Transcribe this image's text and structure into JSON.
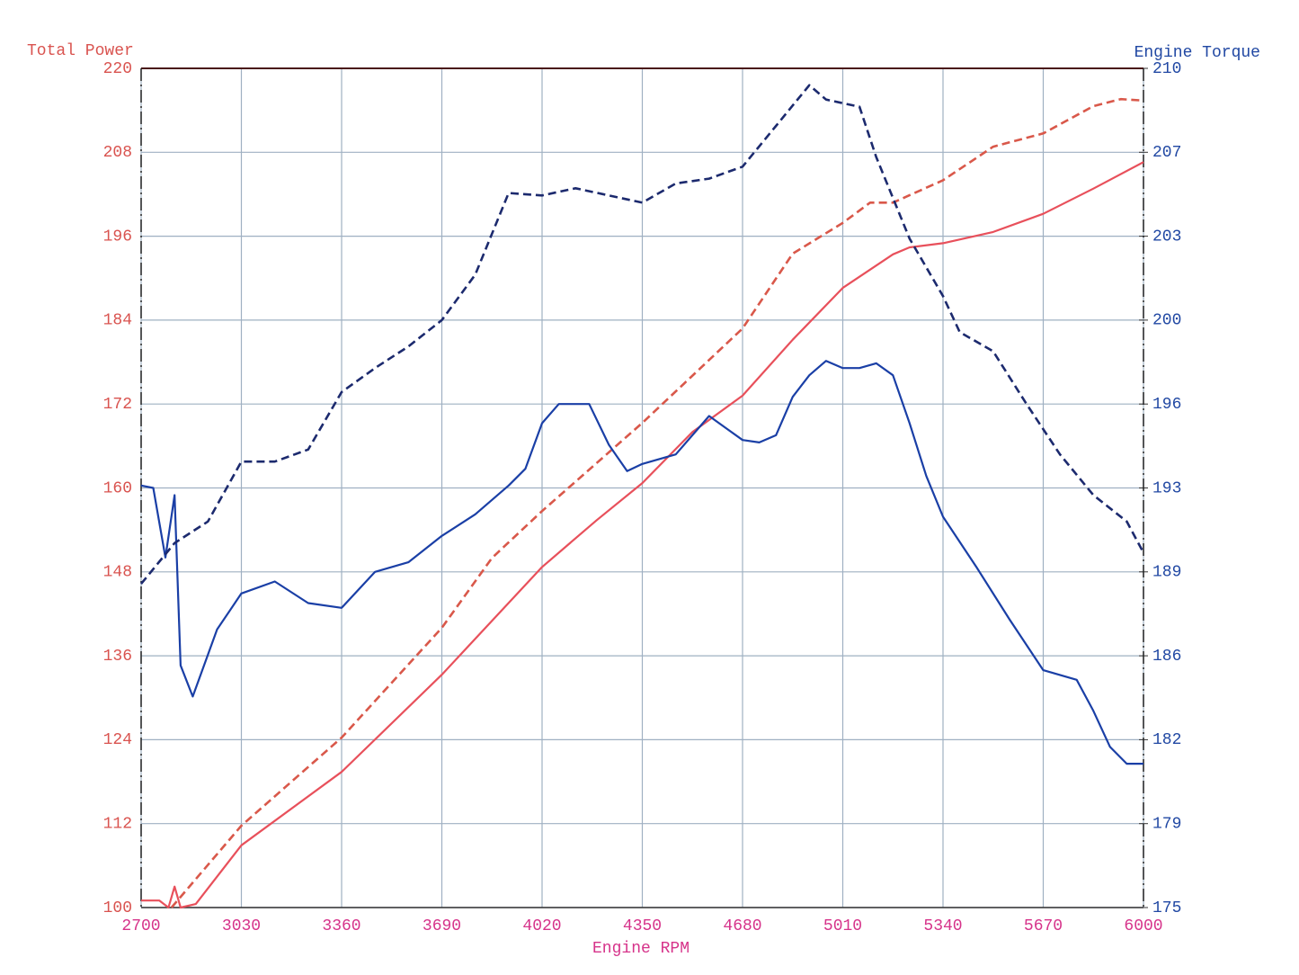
{
  "chart_data": {
    "type": "line",
    "y_label": "Total Power",
    "y2_label": "Engine Torque",
    "x_label": "Engine RPM",
    "xlim": [
      2700,
      6000
    ],
    "xticks": [
      2700,
      3030,
      3360,
      3690,
      4020,
      4350,
      4680,
      5010,
      5340,
      5670,
      6000
    ],
    "ylim": [
      100,
      220
    ],
    "yticks": [
      100,
      112,
      124,
      136,
      148,
      160,
      172,
      184,
      196,
      208,
      220
    ],
    "y2lim": [
      175,
      210
    ],
    "y2ticks": [
      175,
      {
        "value": 178.5,
        "label": "179"
      },
      182,
      {
        "value": 185.5,
        "label": "186"
      },
      189,
      {
        "value": 192.5,
        "label": "193"
      },
      196,
      {
        "value": 199.5,
        "label": "200"
      },
      203,
      {
        "value": 206.5,
        "label": "207"
      },
      210
    ],
    "grid": true,
    "y_color": "#d9534f",
    "y2_color": "#2148a3",
    "x_color": "#d6338a",
    "series": [
      {
        "color": "#e8505b",
        "dashed": false,
        "axis": "y",
        "x": [
          2700,
          2760,
          2790,
          2810,
          2830,
          2880,
          3030,
          3360,
          3690,
          4020,
          4200,
          4350,
          4515,
          4680,
          4845,
          5010,
          5175,
          5230,
          5340,
          5505,
          5670,
          5835,
          6000
        ],
        "values": [
          101,
          101,
          100,
          103,
          100,
          100.5,
          108.9,
          119.4,
          133.3,
          148.7,
          155.4,
          160.7,
          168,
          173.2,
          181.2,
          188.6,
          193.4,
          194.4,
          195,
          196.6,
          199.2,
          202.8,
          206.6
        ]
      },
      {
        "color": "#d9584a",
        "dashed": true,
        "axis": "y",
        "x": [
          2800,
          3030,
          3360,
          3690,
          3855,
          4020,
          4350,
          4680,
          4845,
          5010,
          5100,
          5175,
          5340,
          5505,
          5670,
          5835,
          5925,
          6000
        ],
        "values": [
          100,
          111.7,
          124.3,
          140,
          150,
          156.7,
          169.3,
          182.8,
          193.5,
          197.9,
          200.8,
          200.8,
          204,
          208.8,
          210.7,
          214.6,
          215.6,
          215.4
        ]
      },
      {
        "color": "#1a3fa6",
        "dashed": false,
        "axis": "y2",
        "x": [
          2700,
          2740,
          2780,
          2810,
          2830,
          2870,
          2950,
          3030,
          3140,
          3250,
          3360,
          3470,
          3580,
          3690,
          3800,
          3910,
          3965,
          4020,
          4075,
          4175,
          4240,
          4300,
          4350,
          4460,
          4570,
          4625,
          4680,
          4735,
          4790,
          4845,
          4900,
          4955,
          5010,
          5065,
          5120,
          5175,
          5230,
          5285,
          5340,
          5450,
          5560,
          5670,
          5780,
          5835,
          5890,
          5945,
          6000
        ],
        "values": [
          192.6,
          192.5,
          189.6,
          192.2,
          185.1,
          183.8,
          186.6,
          188.1,
          188.6,
          187.7,
          187.5,
          189,
          189.4,
          190.5,
          191.4,
          192.6,
          193.3,
          195.2,
          196,
          196,
          194.3,
          193.2,
          193.5,
          193.9,
          195.5,
          195,
          194.5,
          194.4,
          194.7,
          196.3,
          197.2,
          197.8,
          197.5,
          197.5,
          197.7,
          197.2,
          195.2,
          193,
          191.3,
          189.2,
          187,
          184.9,
          184.5,
          183.2,
          181.7,
          181,
          181
        ]
      },
      {
        "color": "#1c2a6e",
        "dashed": true,
        "axis": "y2",
        "x": [
          2700,
          2810,
          2920,
          3030,
          3140,
          3250,
          3360,
          3470,
          3580,
          3690,
          3800,
          3910,
          4020,
          4130,
          4240,
          4350,
          4460,
          4570,
          4680,
          4790,
          4900,
          4955,
          5065,
          5120,
          5230,
          5340,
          5395,
          5505,
          5615,
          5725,
          5835,
          5945,
          6000
        ],
        "values": [
          188.5,
          190.2,
          191.1,
          193.6,
          193.6,
          194.1,
          196.5,
          197.5,
          198.4,
          199.5,
          201.4,
          204.8,
          204.7,
          205,
          204.7,
          204.4,
          205.2,
          205.4,
          205.9,
          207.6,
          209.3,
          208.7,
          208.4,
          206.3,
          202.9,
          200.5,
          199,
          198.2,
          196,
          193.9,
          192.2,
          191.1,
          189.8
        ]
      }
    ]
  }
}
